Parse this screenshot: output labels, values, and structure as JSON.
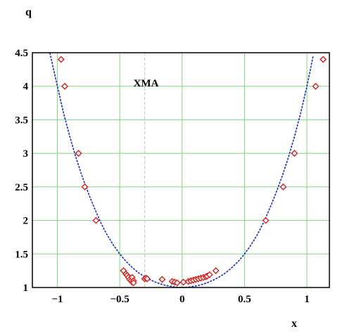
{
  "chart_data": {
    "type": "scatter",
    "title": "",
    "xlabel": "x",
    "ylabel": "q",
    "xlim": [
      -1.2,
      1.18
    ],
    "ylim": [
      1,
      4.5
    ],
    "x_ticks": [
      -1,
      -0.5,
      0,
      0.5,
      1
    ],
    "x_tick_labels": [
      "−1",
      "−0.5",
      "0",
      "0.5",
      "1"
    ],
    "y_ticks": [
      1,
      1.5,
      2,
      2.5,
      3,
      3.5,
      4,
      4.5
    ],
    "y_tick_labels": [
      "1",
      "1.5",
      "2",
      "2.5",
      "3",
      "3.5",
      "4",
      "4.5"
    ],
    "grid": true,
    "grid_color": "#7ed87e",
    "annotation": {
      "text": "XMA",
      "x": -0.3,
      "y": 4.05
    },
    "marker_color": "#d42020",
    "curve_color": "#1a2fb8",
    "reference_line": {
      "x": -0.3,
      "color": "#c8c8c8"
    },
    "series": [
      {
        "kind": "markers",
        "x": [
          -0.97,
          -0.94,
          -0.83,
          -0.78,
          -0.69,
          -0.47,
          -0.45,
          -0.44,
          -0.43,
          -0.42,
          -0.41,
          -0.4,
          -0.4,
          -0.39,
          -0.39,
          -0.3,
          -0.29,
          -0.28,
          -0.16,
          -0.08,
          -0.06,
          -0.04,
          0.01,
          0.05,
          0.07,
          0.09,
          0.11,
          0.13,
          0.15,
          0.17,
          0.19,
          0.2,
          0.22,
          0.27,
          0.67,
          0.81,
          0.9,
          1.07,
          1.13
        ],
        "y": [
          4.4,
          4.0,
          3.0,
          2.5,
          2.0,
          1.25,
          1.2,
          1.18,
          1.15,
          1.12,
          1.1,
          1.08,
          1.15,
          1.1,
          1.07,
          1.13,
          1.14,
          1.13,
          1.12,
          1.09,
          1.08,
          1.07,
          1.08,
          1.09,
          1.1,
          1.11,
          1.12,
          1.13,
          1.14,
          1.15,
          1.16,
          1.17,
          1.19,
          1.25,
          2.0,
          2.5,
          3.0,
          4.0,
          4.4
        ]
      },
      {
        "kind": "fit-curve",
        "x": [
          -1.06,
          -1.0,
          -0.95,
          -0.9,
          -0.85,
          -0.8,
          -0.75,
          -0.7,
          -0.65,
          -0.6,
          -0.55,
          -0.5,
          -0.45,
          -0.4,
          -0.35,
          -0.3,
          -0.25,
          -0.2,
          -0.15,
          -0.1,
          -0.05,
          0,
          0.05,
          0.1,
          0.15,
          0.2,
          0.25,
          0.3,
          0.35,
          0.4,
          0.45,
          0.5,
          0.55,
          0.6,
          0.65,
          0.7,
          0.75,
          0.8,
          0.85,
          0.9,
          0.95,
          1.0,
          1.05
        ],
        "y": [
          4.5,
          4.0,
          3.6,
          3.25,
          2.93,
          2.65,
          2.4,
          2.17,
          1.96,
          1.78,
          1.63,
          1.5,
          1.39,
          1.3,
          1.22,
          1.16,
          1.11,
          1.07,
          1.04,
          1.02,
          1.005,
          1.0,
          1.005,
          1.02,
          1.04,
          1.07,
          1.11,
          1.16,
          1.22,
          1.3,
          1.39,
          1.5,
          1.63,
          1.78,
          1.96,
          2.17,
          2.4,
          2.65,
          2.93,
          3.25,
          3.6,
          4.0,
          4.45
        ]
      }
    ]
  }
}
